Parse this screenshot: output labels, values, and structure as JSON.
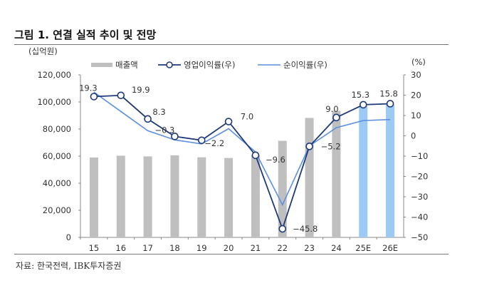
{
  "title": "그림 1. 연결 실적 추이 및 전망",
  "source": "자료: 한국전력, IBK투자증권",
  "chart_data": {
    "type": "bar+line",
    "categories": [
      "15",
      "16",
      "17",
      "18",
      "19",
      "20",
      "21",
      "22",
      "23",
      "24",
      "25E",
      "26E"
    ],
    "left_axis": {
      "unit": "(십억원)",
      "ylim": [
        0,
        120000
      ],
      "ticks": [
        "0",
        "20,000",
        "40,000",
        "60,000",
        "80,000",
        "100,000",
        "120,000"
      ]
    },
    "right_axis": {
      "unit": "(%)",
      "ylim": [
        -50,
        30
      ],
      "ticks": [
        "-50",
        "-40",
        "-30",
        "-20",
        "-10",
        "0",
        "10",
        "20",
        "30"
      ]
    },
    "legend_placement": "top",
    "series": [
      {
        "name": "매출액",
        "type": "bar",
        "axis": "left",
        "color": "#bfbfbf",
        "forecast_color": "#9dcaf5",
        "values": [
          59000,
          60300,
          59800,
          60600,
          59100,
          58600,
          60700,
          71300,
          88200,
          93400,
          97000,
          98000
        ]
      },
      {
        "name": "영업이익률(우)",
        "type": "line",
        "axis": "right",
        "color": "#1f3a78",
        "markers": true,
        "values": [
          19.3,
          19.9,
          8.3,
          -0.3,
          -2.2,
          7.0,
          -9.6,
          -45.8,
          -5.2,
          9.0,
          15.3,
          15.8
        ],
        "labels": [
          "19.3",
          "19.9",
          "8.3",
          "-0.3",
          "-2.2",
          "7.0",
          "-9.6",
          "-45.8",
          "-5.2",
          "9.0",
          "15.3",
          "15.8"
        ]
      },
      {
        "name": "순이익률(우)",
        "type": "line",
        "axis": "right",
        "color": "#5b8fe0",
        "values": [
          21.5,
          12,
          2.5,
          -2,
          -4,
          3.5,
          -8,
          -34,
          -5,
          4,
          7.5,
          8
        ]
      }
    ]
  }
}
